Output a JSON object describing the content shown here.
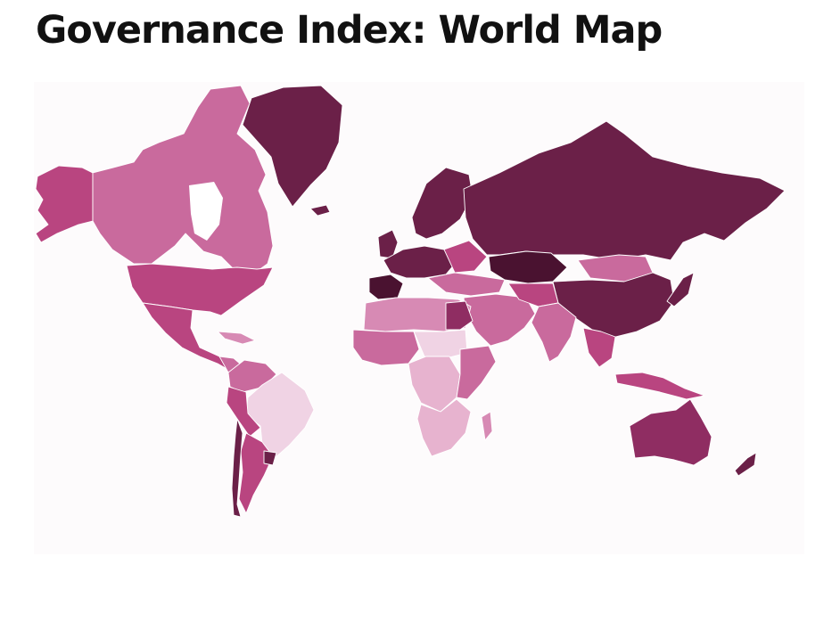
{
  "title": "Governance Index: World Map",
  "palette": {
    "very_low": "#f0d3e4",
    "low": "#e7b3cf",
    "mid_low": "#d78ab4",
    "mid": "#c96a9d",
    "mid_high": "#b94580",
    "high": "#8f2d62",
    "very_high": "#6b2048",
    "top": "#4a1230"
  }
}
